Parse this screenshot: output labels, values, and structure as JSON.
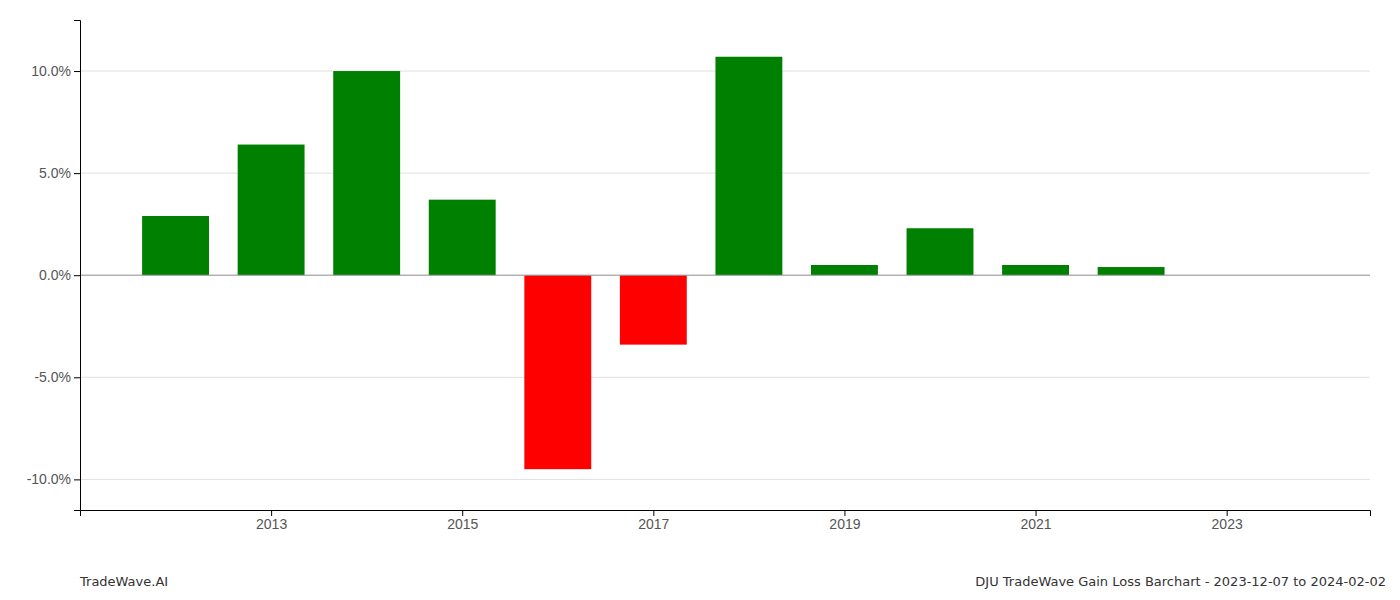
{
  "chart_data": {
    "type": "bar",
    "x": [
      2012,
      2013,
      2014,
      2015,
      2016,
      2017,
      2018,
      2019,
      2020,
      2021,
      2022,
      2023
    ],
    "values": [
      2.9,
      6.4,
      10.0,
      3.7,
      -9.5,
      -3.4,
      10.7,
      0.5,
      2.3,
      0.5,
      0.4,
      0.0
    ],
    "colors": [
      "#008000",
      "#008000",
      "#008000",
      "#008000",
      "#ff0000",
      "#ff0000",
      "#008000",
      "#008000",
      "#008000",
      "#008000",
      "#008000",
      "#008000"
    ],
    "xlim": [
      2011,
      2024.5
    ],
    "xticks": [
      2013,
      2015,
      2017,
      2019,
      2021,
      2023
    ],
    "ylim": [
      -11.5,
      12.5
    ],
    "yticks": [
      {
        "value": -10,
        "label": "-10.0%"
      },
      {
        "value": -5,
        "label": "-5.0%"
      },
      {
        "value": 0,
        "label": "0.0%"
      },
      {
        "value": 5,
        "label": "5.0%"
      },
      {
        "value": 10,
        "label": "10.0%"
      }
    ],
    "grid": true,
    "annotations": [
      "TradeWave.AI",
      "DJU TradeWave Gain Loss Barchart - 2023-12-07 to 2024-02-02"
    ]
  }
}
